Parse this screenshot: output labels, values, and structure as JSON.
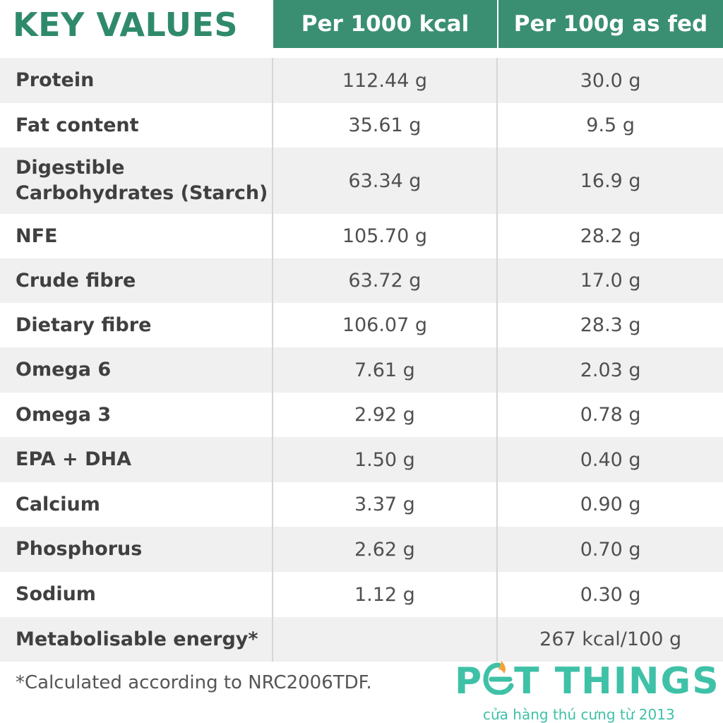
{
  "header": {
    "title": "KEY VALUES",
    "col1": "Per 1000 kcal",
    "col2": "Per 100g as fed"
  },
  "rows": [
    {
      "label": "Protein",
      "per_1000_kcal": "112.44 g",
      "per_100g": "30.0 g"
    },
    {
      "label": "Fat content",
      "per_1000_kcal": "35.61 g",
      "per_100g": "9.5 g"
    },
    {
      "label": "Digestible Carbohydrates (Starch)",
      "per_1000_kcal": "63.34 g",
      "per_100g": "16.9 g"
    },
    {
      "label": "NFE",
      "per_1000_kcal": "105.70 g",
      "per_100g": "28.2 g"
    },
    {
      "label": "Crude fibre",
      "per_1000_kcal": "63.72 g",
      "per_100g": "17.0 g"
    },
    {
      "label": "Dietary fibre",
      "per_1000_kcal": "106.07 g",
      "per_100g": "28.3 g"
    },
    {
      "label": "Omega 6",
      "per_1000_kcal": "7.61 g",
      "per_100g": "2.03 g"
    },
    {
      "label": "Omega 3",
      "per_1000_kcal": "2.92 g",
      "per_100g": "0.78 g"
    },
    {
      "label": "EPA + DHA",
      "per_1000_kcal": "1.50 g",
      "per_100g": "0.40 g"
    },
    {
      "label": "Calcium",
      "per_1000_kcal": "3.37 g",
      "per_100g": "0.90 g"
    },
    {
      "label": "Phosphorus",
      "per_1000_kcal": "2.62 g",
      "per_100g": "0.70 g"
    },
    {
      "label": "Sodium",
      "per_1000_kcal": "1.12 g",
      "per_100g": "0.30 g"
    },
    {
      "label": "Metabolisable energy*",
      "per_1000_kcal": "",
      "per_100g": "267 kcal/100 g"
    }
  ],
  "footnote": "*Calculated according to NRC2006TDF.",
  "logo": {
    "word_left": "P",
    "word_right": "T THINGS",
    "tagline": "cửa hàng thú cưng từ 2013",
    "icon": "paw-e-icon"
  },
  "colors": {
    "header_green": "#3a8f73",
    "title_green": "#2f8a6c",
    "logo_teal": "#3fc1a7",
    "logo_orange": "#f2a43a"
  }
}
